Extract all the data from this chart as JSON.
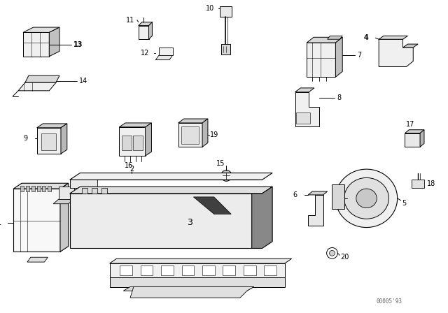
{
  "bg_color": "#ffffff",
  "fig_width": 6.4,
  "fig_height": 4.48,
  "dpi": 100,
  "watermark": "00005'93",
  "line_color": "#000000",
  "lw_main": 0.7,
  "lw_thin": 0.4,
  "label_fs": 7,
  "label_color": "#000000"
}
